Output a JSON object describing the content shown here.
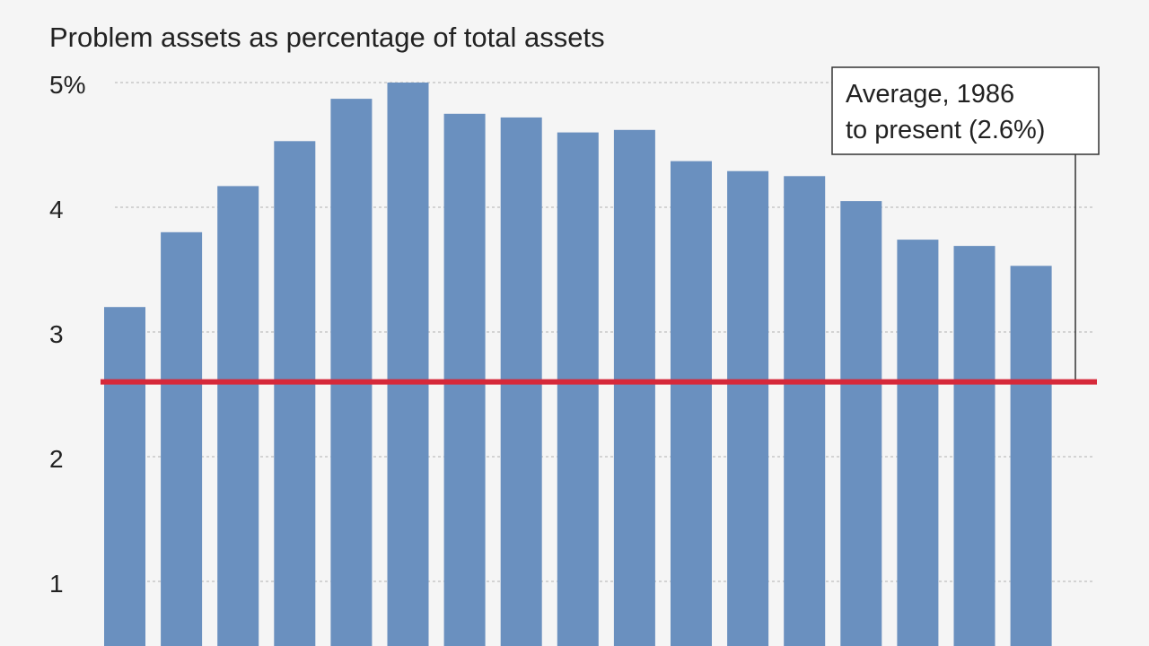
{
  "chart_data": {
    "type": "bar",
    "title": "Problem assets as percentage of total assets",
    "ylabel": "",
    "xlabel": "",
    "y_tick_labels": [
      "5%",
      "4",
      "3",
      "2",
      "1"
    ],
    "y_tick_values": [
      5,
      4,
      3,
      2,
      1
    ],
    "ylim": [
      0,
      5.2
    ],
    "grid": true,
    "values": [
      3.2,
      3.8,
      4.17,
      4.53,
      4.87,
      5.0,
      4.75,
      4.72,
      4.6,
      4.62,
      4.37,
      4.29,
      4.25,
      4.05,
      3.74,
      3.69,
      3.53
    ],
    "average": {
      "value": 2.6,
      "label_line1": "Average, 1986",
      "label_line2": "to present (2.6%)"
    },
    "colors": {
      "bar": "#6a90bf",
      "average_line": "#d6293a",
      "grid": "#c8c8c8",
      "background": "#f5f5f5"
    }
  }
}
